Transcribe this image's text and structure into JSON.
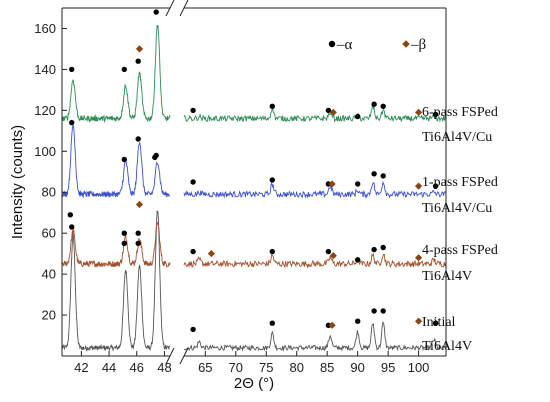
{
  "chart_data": {
    "type": "line",
    "xlabel": "2Θ (°)",
    "ylabel": "Intensity (counts)",
    "ylim": [
      0,
      170
    ],
    "yticks": [
      20,
      40,
      60,
      80,
      100,
      120,
      140,
      160
    ],
    "x_axis_break": true,
    "xlim_left": [
      40.6,
      48.4
    ],
    "xlim_right": [
      61.5,
      104.5
    ],
    "xticks_left": [
      42,
      44,
      46,
      48
    ],
    "xticks_right": [
      65,
      70,
      75,
      80,
      85,
      90,
      95,
      100
    ],
    "legend": {
      "position": "top-right",
      "entries": [
        {
          "label": "–α",
          "marker": "circle",
          "color": "#000000"
        },
        {
          "label": "–β",
          "marker": "diamond",
          "color": "#8b4513"
        }
      ]
    },
    "series": [
      {
        "name": "Initial Ti6Al4V",
        "label_lines": [
          "Initial",
          "Ti6Al4V"
        ],
        "color": "#555555",
        "baseline": 4,
        "noise": 1.2,
        "peaks": [
          [
            41.4,
            55
          ],
          [
            45.2,
            38
          ],
          [
            46.2,
            40
          ],
          [
            47.5,
            67
          ],
          [
            64.0,
            3
          ],
          [
            76.0,
            7
          ],
          [
            85.5,
            6
          ],
          [
            90.0,
            8
          ],
          [
            92.5,
            12
          ],
          [
            94.2,
            12
          ],
          [
            102.5,
            4
          ]
        ],
        "alpha_markers": [
          [
            41.3,
            63
          ],
          [
            45.1,
            55
          ],
          [
            46.1,
            55
          ],
          [
            47.3,
            97
          ],
          [
            63.0,
            13
          ],
          [
            76.0,
            16
          ],
          [
            85.2,
            15
          ],
          [
            90.0,
            17
          ],
          [
            92.7,
            22
          ],
          [
            94.2,
            22
          ],
          [
            102.8,
            16
          ]
        ],
        "beta_markers": [
          [
            85.8,
            15
          ],
          [
            100.0,
            17
          ]
        ]
      },
      {
        "name": "4-pass FSPed Ti6Al4V",
        "label_lines": [
          "4-pass FSPed",
          "Ti6Al4V"
        ],
        "color": "#a0522d",
        "baseline": 45,
        "noise": 1.5,
        "peaks": [
          [
            41.4,
            16
          ],
          [
            45.2,
            13
          ],
          [
            46.2,
            12
          ],
          [
            47.5,
            20
          ],
          [
            64.0,
            2
          ],
          [
            76.0,
            4
          ],
          [
            85.5,
            3
          ],
          [
            90.0,
            2
          ],
          [
            92.5,
            4
          ],
          [
            94.2,
            5
          ],
          [
            102.5,
            2
          ]
        ],
        "alpha_markers": [
          [
            41.2,
            69
          ],
          [
            45.1,
            60
          ],
          [
            46.1,
            60
          ],
          [
            63.0,
            51
          ],
          [
            76.0,
            51
          ],
          [
            85.2,
            51
          ],
          [
            90.0,
            47
          ],
          [
            92.7,
            52
          ],
          [
            94.2,
            53
          ]
        ],
        "beta_markers": [
          [
            46.2,
            74
          ],
          [
            66.0,
            50
          ],
          [
            86.0,
            49
          ],
          [
            100.0,
            48
          ]
        ]
      },
      {
        "name": "1-pass FSPed Ti6Al4V/Cu",
        "label_lines": [
          "1-pass FSPed",
          "Ti6Al4V/Cu"
        ],
        "color": "#3c50c8",
        "baseline": 79,
        "noise": 1.4,
        "peaks": [
          [
            41.4,
            34
          ],
          [
            45.2,
            16
          ],
          [
            46.2,
            26
          ],
          [
            47.5,
            16
          ],
          [
            64.0,
            1
          ],
          [
            76.0,
            5
          ],
          [
            85.5,
            4
          ],
          [
            90.0,
            2
          ],
          [
            92.5,
            6
          ],
          [
            94.2,
            6
          ],
          [
            102.5,
            1
          ]
        ],
        "alpha_markers": [
          [
            41.3,
            114
          ],
          [
            45.1,
            96
          ],
          [
            46.1,
            106
          ],
          [
            47.4,
            98
          ],
          [
            63.0,
            85
          ],
          [
            76.0,
            86
          ],
          [
            85.2,
            84
          ],
          [
            90.0,
            84
          ],
          [
            92.7,
            89
          ],
          [
            94.2,
            88
          ],
          [
            102.8,
            83
          ]
        ],
        "beta_markers": [
          [
            85.8,
            84
          ],
          [
            100.0,
            83
          ]
        ]
      },
      {
        "name": "6-pass FSPed Ti6Al4V/Cu",
        "label_lines": [
          "6-pass FSPed",
          "Ti6Al4V/Cu"
        ],
        "color": "#2e8b57",
        "baseline": 116,
        "noise": 1.4,
        "peaks": [
          [
            41.4,
            19
          ],
          [
            45.2,
            16
          ],
          [
            46.2,
            22
          ],
          [
            47.5,
            46
          ],
          [
            64.0,
            1
          ],
          [
            76.0,
            5
          ],
          [
            85.5,
            3
          ],
          [
            90.0,
            1
          ],
          [
            92.5,
            6
          ],
          [
            94.2,
            4
          ],
          [
            102.5,
            1
          ]
        ],
        "alpha_markers": [
          [
            41.3,
            140
          ],
          [
            45.1,
            140
          ],
          [
            46.1,
            144
          ],
          [
            47.4,
            168
          ],
          [
            63.0,
            120
          ],
          [
            76.0,
            122
          ],
          [
            85.2,
            120
          ],
          [
            90.0,
            117
          ],
          [
            92.7,
            123
          ],
          [
            94.2,
            122
          ],
          [
            102.8,
            118
          ]
        ],
        "beta_markers": [
          [
            46.2,
            150
          ],
          [
            86.0,
            119
          ],
          [
            100.0,
            119
          ]
        ]
      }
    ],
    "colors": {
      "alpha": "#000000",
      "beta": "#8b4513",
      "axis": "#222222"
    }
  }
}
